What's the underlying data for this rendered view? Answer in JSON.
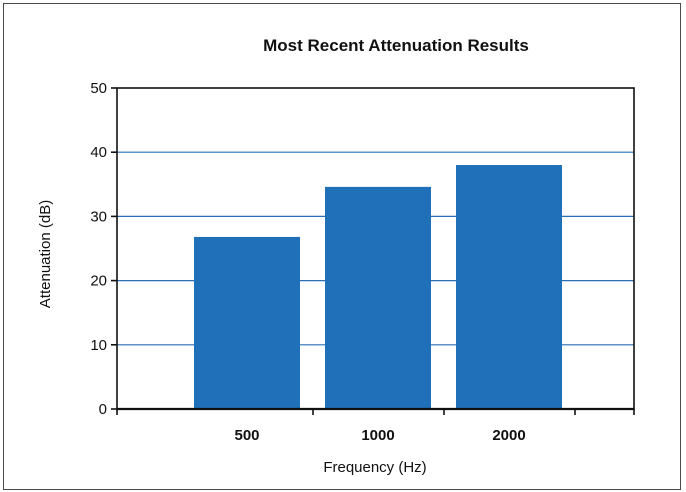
{
  "chart_data": {
    "type": "bar",
    "title": "Most Recent Attenuation Results",
    "xlabel": "Frequency (Hz)",
    "ylabel": "Attenuation (dB)",
    "categories": [
      "500",
      "1000",
      "2000"
    ],
    "values": [
      26.8,
      34.6,
      38.0
    ],
    "ylim": [
      0,
      50
    ],
    "yticks": [
      0,
      10,
      20,
      30,
      40,
      50
    ],
    "grid": true,
    "colors": {
      "bar": "#1f70b8",
      "grid": "#2a6fb5",
      "axis": "#111111"
    }
  }
}
